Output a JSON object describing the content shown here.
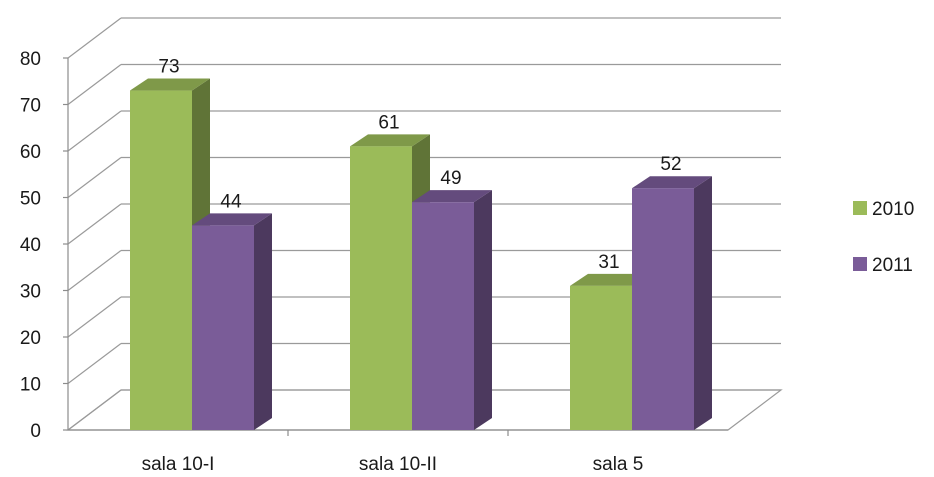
{
  "chart_data": {
    "type": "bar",
    "style": "3d-clustered-column",
    "categories": [
      "sala 10-I",
      "sala 10-II",
      "sala 5"
    ],
    "series": [
      {
        "name": "2010",
        "values": [
          73,
          61,
          31
        ],
        "color": "#9BBB59"
      },
      {
        "name": "2011",
        "values": [
          44,
          49,
          52
        ],
        "color": "#7A5C98"
      }
    ],
    "ylim": [
      0,
      80
    ],
    "yticks": [
      "0",
      "10",
      "20",
      "30",
      "40",
      "50",
      "60",
      "70",
      "80"
    ],
    "grid": true,
    "legend_position": "right",
    "data_labels": true
  }
}
